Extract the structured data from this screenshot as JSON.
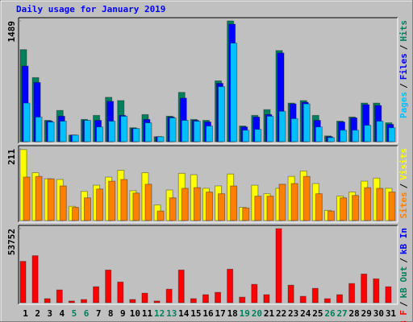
{
  "chart_data": [
    {
      "type": "bar",
      "title": "Daily usage for January 2019",
      "ylim": [
        0,
        1489
      ],
      "yticks": [
        1489
      ],
      "legend_separator": "/",
      "series": [
        {
          "name": "Hits",
          "color": "#00805c",
          "values": [
            1135,
            790,
            263,
            385,
            81,
            274,
            324,
            547,
            507,
            172,
            334,
            61,
            314,
            608,
            274,
            263,
            750,
            1489,
            193,
            324,
            395,
            1124,
            476,
            507,
            324,
            71,
            253,
            304,
            476,
            476,
            233
          ]
        },
        {
          "name": "Files",
          "color": "#0000ff",
          "values": [
            932,
            730,
            253,
            314,
            81,
            263,
            263,
            497,
            324,
            162,
            274,
            61,
            304,
            537,
            263,
            243,
            719,
            1449,
            182,
            304,
            334,
            1094,
            466,
            486,
            263,
            61,
            243,
            294,
            456,
            446,
            213
          ]
        },
        {
          "name": "Pages",
          "color": "#00c0ff",
          "values": [
            476,
            304,
            243,
            253,
            81,
            263,
            182,
            253,
            314,
            162,
            233,
            61,
            294,
            263,
            253,
            193,
            679,
            1216,
            142,
            152,
            314,
            375,
            284,
            466,
            182,
            51,
            142,
            142,
            203,
            253,
            172
          ]
        }
      ]
    },
    {
      "type": "bar",
      "ylim": [
        0,
        211
      ],
      "yticks": [
        211
      ],
      "legend_separator": "/",
      "series": [
        {
          "name": "Visits",
          "color": "#ffff00",
          "values": [
            209,
            141,
            123,
            121,
            42,
            86,
            104,
            128,
            148,
            88,
            141,
            46,
            90,
            139,
            135,
            95,
            102,
            137,
            39,
            104,
            79,
            95,
            130,
            146,
            109,
            30,
            72,
            84,
            116,
            125,
            95
          ]
        },
        {
          "name": "Sites",
          "color": "#ff8000",
          "values": [
            128,
            130,
            123,
            102,
            39,
            67,
            93,
            116,
            121,
            81,
            107,
            28,
            67,
            95,
            97,
            84,
            79,
            102,
            37,
            72,
            72,
            107,
            109,
            130,
            79,
            28,
            67,
            74,
            97,
            95,
            84
          ]
        }
      ]
    },
    {
      "type": "bar",
      "ylim": [
        0,
        53752
      ],
      "yticks": [
        53752
      ],
      "legend_separator": "/",
      "categories": [
        "1",
        "2",
        "3",
        "4",
        "5",
        "6",
        "7",
        "8",
        "9",
        "10",
        "11",
        "12",
        "13",
        "14",
        "15",
        "16",
        "17",
        "18",
        "19",
        "20",
        "21",
        "22",
        "23",
        "24",
        "25",
        "26",
        "27",
        "28",
        "29",
        "30",
        "31"
      ],
      "category_colors": [
        "#000000",
        "#000000",
        "#000000",
        "#000000",
        "#00805c",
        "#00805c",
        "#000000",
        "#000000",
        "#000000",
        "#000000",
        "#000000",
        "#00805c",
        "#00805c",
        "#000000",
        "#000000",
        "#000000",
        "#000000",
        "#000000",
        "#00805c",
        "#00805c",
        "#000000",
        "#000000",
        "#000000",
        "#000000",
        "#000000",
        "#00805c",
        "#00805c",
        "#000000",
        "#000000",
        "#000000",
        "#000000"
      ],
      "series": [
        {
          "name": "kB F",
          "color": "#ff0000",
          "values": [
            30000,
            34100,
            2900,
            9250,
            1200,
            2300,
            11560,
            23700,
            15000,
            2300,
            6900,
            1200,
            9800,
            23700,
            2900,
            5800,
            7500,
            24300,
            4000,
            13300,
            5800,
            53752,
            12700,
            4600,
            10400,
            2900,
            5800,
            13900,
            20800,
            17300,
            11560
          ]
        }
      ],
      "other_legend": [
        {
          "name": "kB Out",
          "color": "#00805c"
        },
        {
          "name": "kB In",
          "color": "#0000ff"
        }
      ]
    }
  ]
}
